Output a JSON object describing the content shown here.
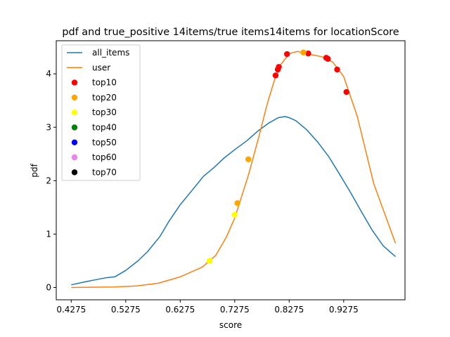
{
  "chart_data": {
    "type": "line",
    "title": "pdf and true_positive 14items/true items14items for locationScore",
    "xlabel": "score",
    "ylabel": "pdf",
    "xlim": [
      0.4,
      1.04
    ],
    "ylim": [
      -0.23,
      4.62
    ],
    "x_ticks": [
      0.4275,
      0.5275,
      0.6275,
      0.7275,
      0.8275,
      0.9275
    ],
    "x_tick_labels": [
      "0.4275",
      "0.5275",
      "0.6275",
      "0.7275",
      "0.8275",
      "0.9275"
    ],
    "y_ticks": [
      0,
      1,
      2,
      3,
      4
    ],
    "y_tick_labels": [
      "0",
      "1",
      "2",
      "3",
      "4"
    ],
    "grid": false,
    "legend_position": "upper-left",
    "series": [
      {
        "name": "all_items",
        "kind": "line",
        "color": "#1f77b4",
        "x": [
          0.4275,
          0.45,
          0.47,
          0.49,
          0.5075,
          0.5275,
          0.55,
          0.5675,
          0.59,
          0.6075,
          0.6275,
          0.65,
          0.67,
          0.69,
          0.7075,
          0.7275,
          0.75,
          0.77,
          0.79,
          0.8075,
          0.82,
          0.8275,
          0.84,
          0.86,
          0.88,
          0.9,
          0.92,
          0.94,
          0.96,
          0.98,
          1.0,
          1.0225
        ],
        "y": [
          0.05,
          0.1,
          0.14,
          0.18,
          0.2,
          0.32,
          0.5,
          0.67,
          0.95,
          1.25,
          1.55,
          1.83,
          2.08,
          2.25,
          2.42,
          2.58,
          2.75,
          2.93,
          3.08,
          3.18,
          3.2,
          3.18,
          3.12,
          2.95,
          2.72,
          2.45,
          2.12,
          1.78,
          1.42,
          1.07,
          0.78,
          0.58
        ]
      },
      {
        "name": "user",
        "kind": "line",
        "color": "#ff7f0e",
        "x": [
          0.4275,
          0.5075,
          0.5475,
          0.5875,
          0.6275,
          0.6675,
          0.6925,
          0.7125,
          0.7275,
          0.7375,
          0.7525,
          0.7725,
          0.7875,
          0.8025,
          0.8125,
          0.8275,
          0.8425,
          0.8575,
          0.8725,
          0.8875,
          0.9075,
          0.9275,
          0.9525,
          0.9825,
          1.0225
        ],
        "y": [
          0.0,
          0.01,
          0.03,
          0.08,
          0.2,
          0.38,
          0.6,
          0.95,
          1.3,
          1.62,
          2.1,
          2.85,
          3.45,
          3.95,
          4.18,
          4.38,
          4.42,
          4.38,
          4.35,
          4.32,
          4.22,
          3.95,
          3.2,
          1.95,
          0.83
        ]
      },
      {
        "name": "top10",
        "kind": "scatter",
        "color": "#ff0000",
        "x": [
          0.8025,
          0.8065,
          0.8085,
          0.8235,
          0.8625,
          0.8955,
          0.8985,
          0.9155,
          0.9325
        ],
        "y": [
          3.97,
          4.08,
          4.13,
          4.37,
          4.38,
          4.3,
          4.28,
          4.08,
          3.66
        ]
      },
      {
        "name": "top20",
        "kind": "scatter",
        "color": "#ffa500",
        "x": [
          0.7325,
          0.7525,
          0.8535
        ],
        "y": [
          1.58,
          2.4,
          4.4
        ]
      },
      {
        "name": "top30",
        "kind": "scatter",
        "color": "#ffff00",
        "x": [
          0.6815,
          0.7275
        ],
        "y": [
          0.5,
          1.36
        ]
      },
      {
        "name": "top40",
        "kind": "scatter",
        "color": "#008000",
        "x": [],
        "y": []
      },
      {
        "name": "top50",
        "kind": "scatter",
        "color": "#0000ff",
        "x": [],
        "y": []
      },
      {
        "name": "top60",
        "kind": "scatter",
        "color": "#ee82ee",
        "x": [],
        "y": []
      },
      {
        "name": "top70",
        "kind": "scatter",
        "color": "#000000",
        "x": [],
        "y": []
      }
    ]
  }
}
